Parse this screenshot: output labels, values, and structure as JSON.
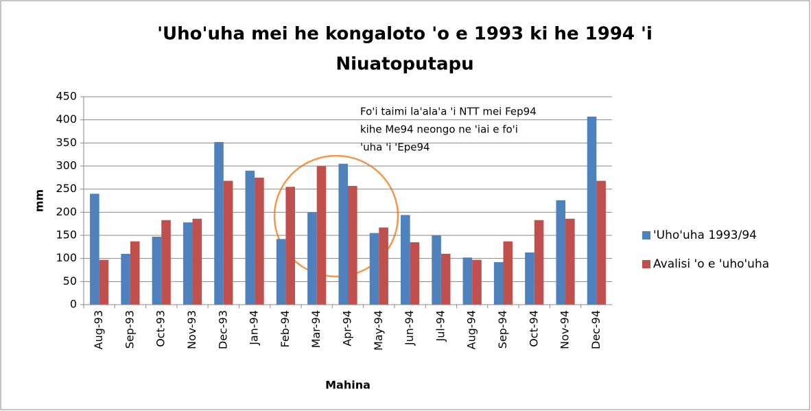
{
  "chart_data": {
    "type": "bar",
    "title": [
      "'Uho'uha mei he kongaloto 'o e 1993 ki he 1994 'i",
      "Niuatoputapu"
    ],
    "x_label": "Mahina",
    "y_label": "mm",
    "annotation": [
      "Fo'i taimi la'ala'a 'i NTT mei Fep94",
      "kihe Me94 neongo ne 'iai e fo'i",
      "'uha 'i 'Epe94"
    ],
    "categories": [
      "Aug-93",
      "Sep-93",
      "Oct-93",
      "Nov-93",
      "Dec-93",
      "Jan-94",
      "Feb-94",
      "Mar-94",
      "Apr-94",
      "May-94",
      "Jun-94",
      "Jul-94",
      "Aug-94",
      "Sep-94",
      "Oct-94",
      "Nov-94",
      "Dec-94"
    ],
    "series": [
      {
        "name": "'Uho'uha 1993/94",
        "color": "#4f81bd",
        "values": [
          240,
          110,
          147,
          178,
          352,
          290,
          142,
          200,
          305,
          155,
          194,
          150,
          102,
          92,
          113,
          226,
          407
        ]
      },
      {
        "name": "Avalisi 'o e 'uho'uha",
        "color": "#c0504d",
        "values": [
          97,
          137,
          183,
          186,
          268,
          275,
          255,
          300,
          257,
          167,
          135,
          110,
          97,
          137,
          183,
          186,
          268
        ]
      }
    ],
    "ylim": [
      0,
      450
    ],
    "yticks": [
      0,
      50,
      100,
      150,
      200,
      250,
      300,
      350,
      400,
      450
    ],
    "grid": true,
    "legend": "right"
  }
}
